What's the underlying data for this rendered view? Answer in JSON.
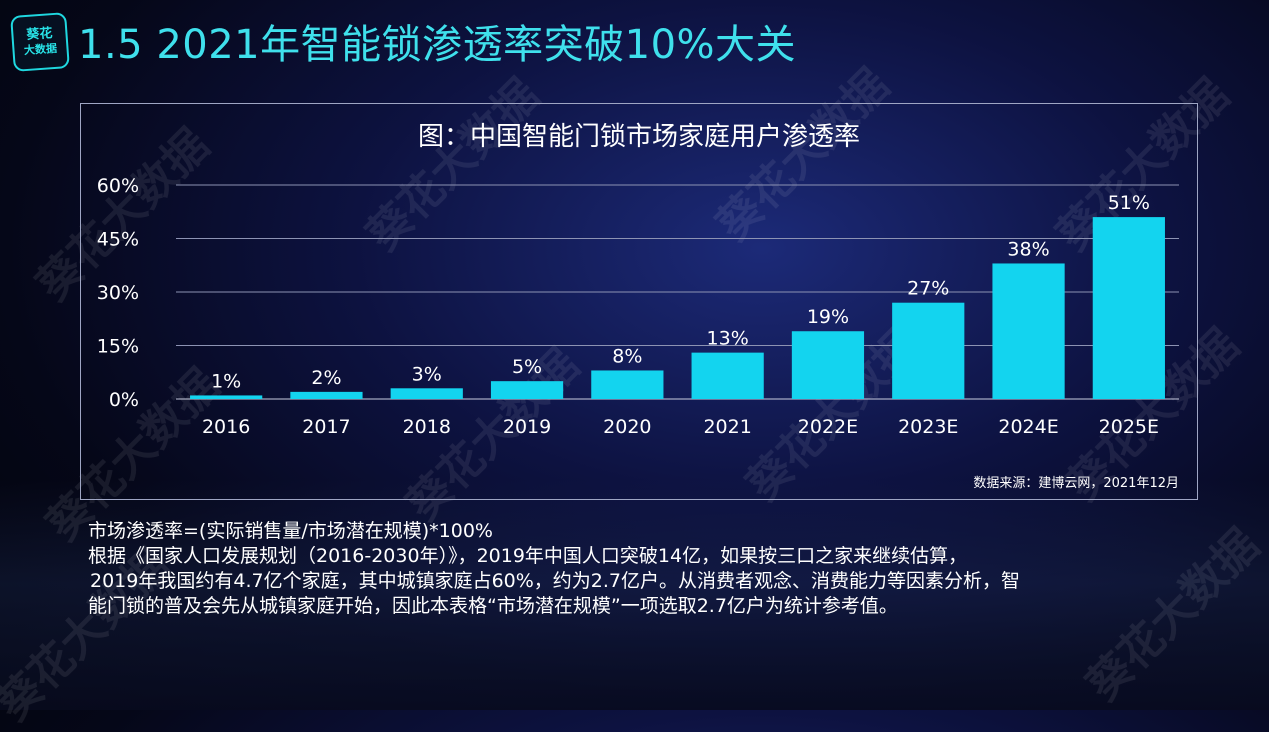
{
  "logo": {
    "line1": "葵花",
    "line2": "大数据"
  },
  "slide": {
    "title": "1.5 2021年智能锁渗透率突破10%大关"
  },
  "chart_data": {
    "type": "bar",
    "title": "图：中国智能门锁市场家庭用户渗透率",
    "categories": [
      "2016",
      "2017",
      "2018",
      "2019",
      "2020",
      "2021",
      "2022E",
      "2023E",
      "2024E",
      "2025E"
    ],
    "values": [
      1,
      2,
      3,
      5,
      8,
      13,
      19,
      27,
      38,
      51
    ],
    "data_labels": [
      "1%",
      "2%",
      "3%",
      "5%",
      "8%",
      "13%",
      "19%",
      "27%",
      "38%",
      "51%"
    ],
    "yticks": [
      0,
      15,
      30,
      45,
      60
    ],
    "ytick_labels": [
      "0%",
      "15%",
      "30%",
      "45%",
      "60%"
    ],
    "ylim": [
      0,
      60
    ],
    "xlabel": "",
    "ylabel": "",
    "grid": true,
    "bar_color": "#13d4ef"
  },
  "source": "数据来源：建博云网，2021年12月",
  "notes": {
    "line1": "市场渗透率=(实际销售量/市场潜在规模)*100%",
    "line2": "根据《国家人口发展规划（2016-2030年）》，2019年中国人口突破14亿，如果按三口之家来继续估算，",
    "line3": "2019年我国约有4.7亿个家庭，其中城镇家庭占60%，约为2.7亿户。从消费者观念、消费能力等因素分析，智",
    "line4": "能门锁的普及会先从城镇家庭开始，因此本表格“市场潜在规模”一项选取2.7亿户为统计参考值。"
  },
  "watermark": "葵花大数据"
}
